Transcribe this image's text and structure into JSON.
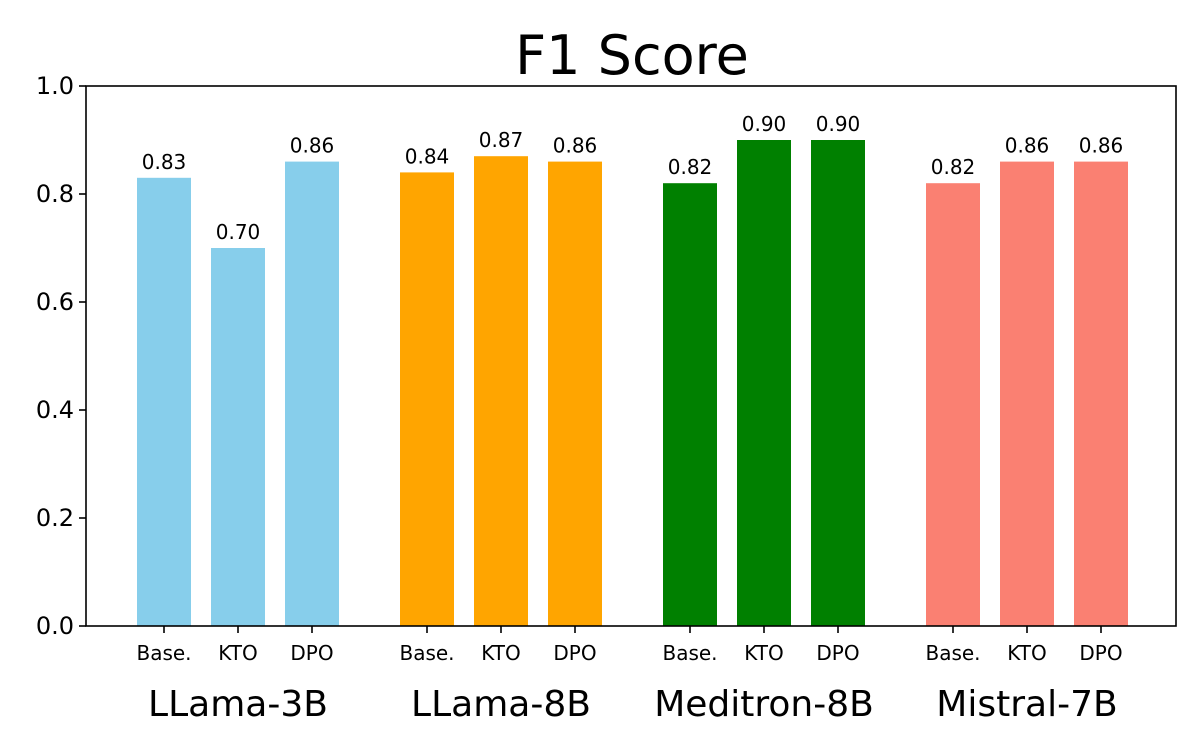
{
  "chart_data": {
    "type": "bar",
    "title": "F1 Score",
    "xlabel": "",
    "ylabel": "",
    "ylim": [
      0.0,
      1.0
    ],
    "yticks": [
      "0.0",
      "0.2",
      "0.4",
      "0.6",
      "0.8",
      "1.0"
    ],
    "grid": false,
    "legend": "none",
    "groups": [
      {
        "name": "LLama-3B",
        "color": "#87CEEB",
        "categories": [
          "Base.",
          "KTO",
          "DPO"
        ],
        "values": [
          0.83,
          0.7,
          0.86
        ],
        "labels": [
          "0.83",
          "0.70",
          "0.86"
        ]
      },
      {
        "name": "LLama-8B",
        "color": "#FFA500",
        "categories": [
          "Base.",
          "KTO",
          "DPO"
        ],
        "values": [
          0.84,
          0.87,
          0.86
        ],
        "labels": [
          "0.84",
          "0.87",
          "0.86"
        ]
      },
      {
        "name": "Meditron-8B",
        "color": "#008000",
        "categories": [
          "Base.",
          "KTO",
          "DPO"
        ],
        "values": [
          0.82,
          0.9,
          0.9
        ],
        "labels": [
          "0.82",
          "0.90",
          "0.90"
        ]
      },
      {
        "name": "Mistral-7B",
        "color": "#FA8072",
        "categories": [
          "Base.",
          "KTO",
          "DPO"
        ],
        "values": [
          0.82,
          0.86,
          0.86
        ],
        "labels": [
          "0.82",
          "0.86",
          "0.86"
        ]
      }
    ]
  }
}
